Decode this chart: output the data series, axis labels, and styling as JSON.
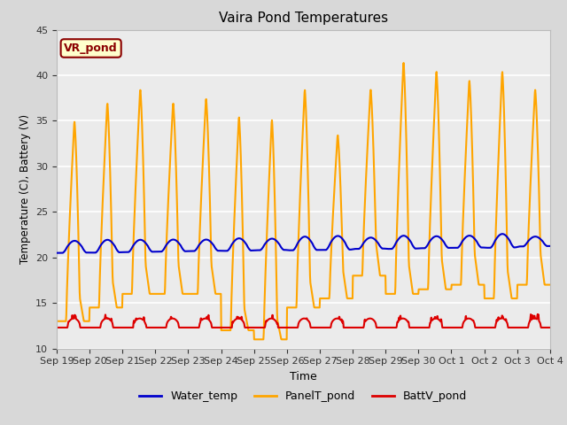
{
  "title": "Vaira Pond Temperatures",
  "xlabel": "Time",
  "ylabel": "Temperature (C), Battery (V)",
  "ylim": [
    10,
    45
  ],
  "annotation_text": "VR_pond",
  "legend_labels": [
    "Water_temp",
    "PanelT_pond",
    "BattV_pond"
  ],
  "water_temp_color": "#0000cc",
  "panel_temp_color": "#ffa500",
  "batt_color": "#dd0000",
  "water_temp_lw": 1.5,
  "panel_temp_lw": 1.5,
  "batt_lw": 1.5,
  "x_tick_labels": [
    "Sep 19",
    "Sep 20",
    "Sep 21",
    "Sep 22",
    "Sep 23",
    "Sep 24",
    "Sep 25",
    "Sep 26",
    "Sep 27",
    "Sep 28",
    "Sep 29",
    "Sep 30",
    "Oct 1",
    "Oct 2",
    "Oct 3",
    "Oct 4"
  ],
  "y_ticks": [
    10,
    15,
    20,
    25,
    30,
    35,
    40,
    45
  ],
  "fig_bg": "#d8d8d8",
  "axes_bg": "#ebebeb",
  "grid_color": "#ffffff",
  "panel_peaks": [
    35.0,
    37.0,
    38.5,
    37.0,
    37.5,
    35.5,
    35.2,
    38.5,
    33.5,
    38.5,
    41.5,
    40.5,
    39.5,
    40.5,
    38.5
  ],
  "panel_troughs": [
    13.0,
    14.5,
    16.0,
    16.0,
    16.0,
    12.0,
    11.0,
    14.5,
    15.5,
    18.0,
    16.0,
    16.5,
    17.0,
    15.5,
    17.0
  ],
  "water_base": 21.0,
  "batt_base": 12.5
}
